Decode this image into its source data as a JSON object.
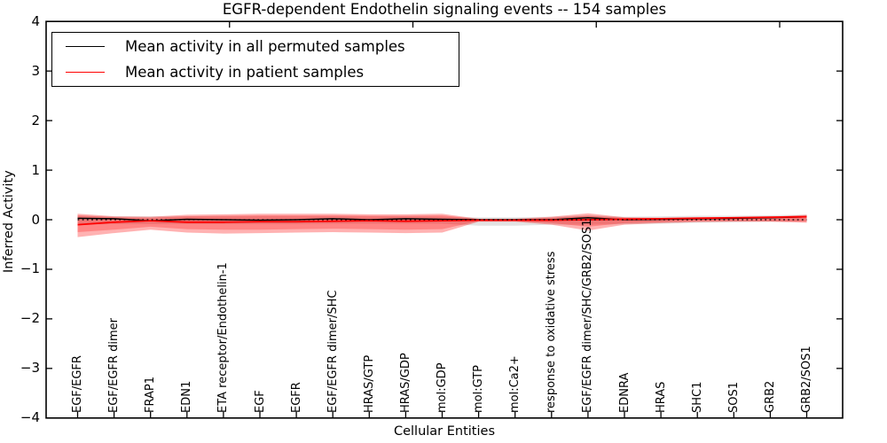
{
  "title": "EGFR-dependent Endothelin signaling events -- 154 samples",
  "y_axis": {
    "label": "Inferred Activity",
    "tick_labels": [
      "4",
      "3",
      "2",
      "1",
      "0",
      "−1",
      "−2",
      "−3",
      "−4"
    ],
    "tick_values": [
      4,
      3,
      2,
      1,
      0,
      -1,
      -2,
      -3,
      -4
    ]
  },
  "x_axis": {
    "label": "Cellular Entities"
  },
  "legend": {
    "items": [
      {
        "label": "Mean activity in all permuted samples",
        "color": "#000000"
      },
      {
        "label": "Mean activity in patient samples",
        "color": "#ff0000"
      }
    ]
  },
  "chart_data": {
    "type": "line",
    "title": "EGFR-dependent Endothelin signaling events -- 154 samples",
    "xlabel": "Cellular Entities",
    "ylabel": "Inferred Activity",
    "ylim": [
      -4,
      4
    ],
    "yticks": [
      4,
      3,
      2,
      1,
      0,
      -1,
      -2,
      -3,
      -4
    ],
    "grid": false,
    "legend_position": "upper left",
    "categories": [
      "EGF/EGFR",
      "EGF/EGFR dimer",
      "FRAP1",
      "EDN1",
      "ETA receptor/Endothelin-1",
      "EGF",
      "EGFR",
      "EGF/EGFR dimer/SHC",
      "HRAS/GTP",
      "HRAS/GDP",
      "mol:GDP",
      "mol:GTP",
      "mol:Ca2+",
      "response to oxidative stress",
      "EGF/EGFR dimer/SHC/GRB2/SOS1",
      "EDNRA",
      "HRAS",
      "SHC1",
      "SOS1",
      "GRB2",
      "GRB2/SOS1"
    ],
    "series": [
      {
        "name": "Mean activity in all permuted samples",
        "color": "#000000",
        "style": "solid",
        "values": [
          0.03,
          0.02,
          -0.02,
          0.01,
          0.0,
          -0.01,
          0.0,
          0.02,
          0.0,
          0.02,
          0.01,
          0.0,
          0.0,
          0.0,
          0.04,
          0.0,
          0.01,
          0.02,
          0.03,
          0.04,
          0.06
        ]
      },
      {
        "name": "Mean activity in patient samples",
        "color": "#ff0000",
        "style": "solid",
        "values": [
          -0.1,
          -0.05,
          -0.02,
          -0.05,
          -0.05,
          -0.04,
          -0.04,
          -0.03,
          -0.02,
          -0.03,
          -0.02,
          -0.01,
          -0.01,
          -0.01,
          0.0,
          0.01,
          0.02,
          0.03,
          0.04,
          0.05,
          0.06
        ]
      }
    ],
    "zero_line": {
      "value": 0,
      "color": "#000000",
      "style": "dotted"
    },
    "bands": [
      {
        "name": "permuted-samples-spread",
        "color": "rgba(100,100,100,0.18)",
        "upper": [
          0.08,
          0.07,
          0.07,
          0.07,
          0.07,
          0.07,
          0.07,
          0.07,
          0.07,
          0.07,
          0.06,
          0.05,
          0.05,
          0.06,
          0.09,
          0.06,
          0.07,
          0.08,
          0.08,
          0.09,
          0.1
        ],
        "lower": [
          -0.1,
          -0.09,
          -0.09,
          -0.09,
          -0.09,
          -0.09,
          -0.09,
          -0.08,
          -0.08,
          -0.08,
          -0.08,
          -0.12,
          -0.12,
          -0.1,
          -0.1,
          -0.09,
          -0.08,
          -0.06,
          -0.05,
          -0.04,
          -0.03
        ]
      },
      {
        "name": "patient-samples-spread-outer",
        "color": "rgba(255,0,0,0.3)",
        "upper": [
          0.12,
          0.07,
          0.06,
          0.1,
          0.11,
          0.12,
          0.12,
          0.12,
          0.11,
          0.11,
          0.12,
          0.02,
          0.02,
          0.06,
          0.13,
          0.05,
          0.04,
          0.05,
          0.05,
          0.06,
          0.1
        ],
        "lower": [
          -0.35,
          -0.27,
          -0.2,
          -0.26,
          -0.28,
          -0.27,
          -0.26,
          -0.25,
          -0.26,
          -0.27,
          -0.26,
          -0.04,
          -0.04,
          -0.1,
          -0.22,
          -0.1,
          -0.07,
          -0.05,
          -0.04,
          -0.04,
          -0.06
        ]
      },
      {
        "name": "patient-samples-spread-inner",
        "color": "rgba(255,0,0,0.25)",
        "upper": [
          0.09,
          0.05,
          0.04,
          0.07,
          0.08,
          0.09,
          0.09,
          0.09,
          0.08,
          0.08,
          0.09,
          0.01,
          0.01,
          0.04,
          0.08,
          0.04,
          0.03,
          0.04,
          0.04,
          0.05,
          0.08
        ],
        "lower": [
          -0.25,
          -0.2,
          -0.14,
          -0.19,
          -0.2,
          -0.2,
          -0.19,
          -0.18,
          -0.19,
          -0.2,
          -0.19,
          -0.03,
          -0.03,
          -0.07,
          -0.14,
          -0.07,
          -0.05,
          -0.03,
          -0.03,
          -0.03,
          -0.04
        ]
      }
    ]
  }
}
